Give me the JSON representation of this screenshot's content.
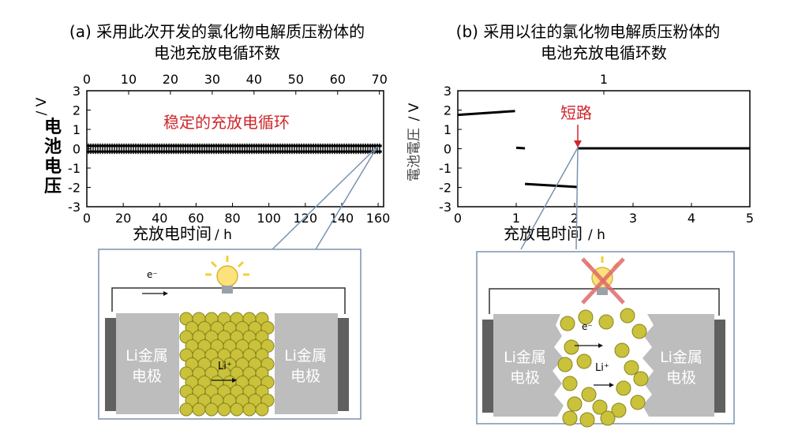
{
  "panel_a": {
    "caption_line1": "(a) 采用此次开发的氯化物电解质压粉体的",
    "caption_line2": "电池充放电循环数",
    "annotation": "稳定的充放电循环",
    "ylabel": "电池电压",
    "yunit": "/ V",
    "xlabel": "充放电时间",
    "xunit": "/ h"
  },
  "panel_b": {
    "caption_line1": "(b) 采用以往的氯化物电解质压粉体的",
    "caption_line2": "电池充放电循环数",
    "annotation": "短路",
    "ylabel": "電池電圧",
    "yunit": "/ V",
    "xlabel": "充放电时间",
    "xunit": "/ h"
  },
  "diagram_a": {
    "electron": "e⁻",
    "ion": "Li⁺",
    "left_electrode": "Li金属\n电极",
    "right_electrode": "Li金属\n电极",
    "bulb_state": "lit"
  },
  "diagram_b": {
    "electron": "e⁻",
    "ion": "Li⁺",
    "left_electrode": "Li金属\n电极",
    "right_electrode": "Li金属\n电极",
    "bulb_state": "crossed-out"
  },
  "colors": {
    "annotation": "#d0272b",
    "electrode": "#bdbdbd",
    "particle": "#c9c23a",
    "callout": "#7a93ad"
  },
  "chart_data": [
    {
      "type": "line",
      "panel": "a",
      "xlim": [
        0,
        163
      ],
      "ylim": [
        -3,
        3
      ],
      "x_ticks": [
        0,
        20,
        40,
        60,
        80,
        100,
        120,
        140,
        160
      ],
      "y_ticks": [
        3,
        2,
        1,
        0,
        -1,
        -2,
        -3
      ],
      "secondary_x_ticks": [
        0,
        10,
        20,
        30,
        40,
        50,
        60,
        70
      ],
      "secondary_xlim": [
        0,
        71
      ],
      "grid": false,
      "series": [
        {
          "x": [
            0,
            162
          ],
          "y": [
            0.15,
            0.15
          ]
        },
        {
          "x": [
            0,
            162
          ],
          "y": [
            -0.15,
            -0.15
          ]
        }
      ]
    },
    {
      "type": "line",
      "panel": "b",
      "xlim": [
        0,
        5
      ],
      "ylim": [
        -3,
        3
      ],
      "x_ticks": [
        0,
        1,
        2,
        3,
        4,
        5
      ],
      "y_ticks": [
        3,
        2,
        1,
        0,
        -1,
        -2,
        -3
      ],
      "secondary_x_ticks": [
        1
      ],
      "grid": false,
      "series": [
        {
          "x": [
            0,
            0.98
          ],
          "y": [
            1.75,
            1.95
          ]
        },
        {
          "x": [
            1.0,
            1.15
          ],
          "y": [
            0.05,
            0.02
          ]
        },
        {
          "x": [
            1.15,
            2.05
          ],
          "y": [
            -1.82,
            -1.98
          ]
        },
        {
          "x": [
            2.05,
            5.0
          ],
          "y": [
            0.02,
            0.02
          ]
        }
      ],
      "event": {
        "label": "短路",
        "x": 2.05,
        "y": 0.02
      }
    }
  ]
}
